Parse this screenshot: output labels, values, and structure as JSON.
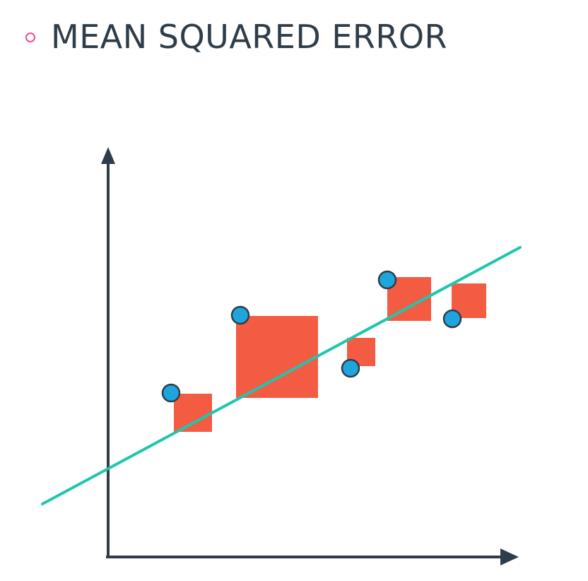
{
  "slide": {
    "title": "MEAN SQUARED ERROR"
  },
  "colors": {
    "text": "#2e3d49",
    "bullet": "#e5508f",
    "axis": "#2e3d49",
    "regression_line": "#1fc6ad",
    "error_square": "#f45b43",
    "point_fill": "#1ea6dc",
    "point_stroke": "#2e3d49"
  },
  "icons": {
    "bullet": "hollow-circle-bullet",
    "y_axis_arrow": "arrow-up",
    "x_axis_arrow": "arrow-right"
  }
}
